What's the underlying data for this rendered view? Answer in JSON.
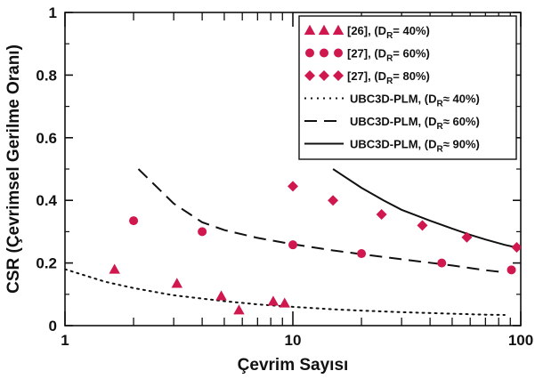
{
  "chart_data": {
    "type": "scatter",
    "xlabel": "Çevrim Sayısı",
    "ylabel": "CSR (Çevrimsel Gerilme Oranı)",
    "xscale": "log",
    "xlim": [
      1,
      100
    ],
    "ylim": [
      0,
      1
    ],
    "x_ticks": [
      1,
      10,
      100
    ],
    "x_tick_labels": [
      "1",
      "10",
      "100"
    ],
    "y_ticks": [
      0,
      0.2,
      0.4,
      0.6,
      0.8,
      1
    ],
    "y_tick_labels": [
      "0",
      "0.2",
      "0.4",
      "0.6",
      "0.8",
      "1"
    ],
    "grid": false,
    "legend_position": "top-right",
    "series": [
      {
        "name": "[26], (DR= 40%)",
        "legend_main": "[26], (D",
        "legend_sub": "R",
        "legend_rest": "= 40%)",
        "kind": "marker",
        "marker": "triangle",
        "color": "#D0184F",
        "x": [
          1.65,
          3.1,
          4.85,
          5.8,
          8.2,
          9.2
        ],
        "y": [
          0.18,
          0.135,
          0.095,
          0.05,
          0.078,
          0.072
        ]
      },
      {
        "name": "[27], (DR= 60%)",
        "legend_main": "[27], (D",
        "legend_sub": "R",
        "legend_rest": "= 60%)",
        "kind": "marker",
        "marker": "circle",
        "color": "#D0184F",
        "x": [
          2,
          4,
          10,
          20,
          45,
          91
        ],
        "y": [
          0.335,
          0.3,
          0.258,
          0.23,
          0.2,
          0.178
        ]
      },
      {
        "name": "[27], (DR= 80%)",
        "legend_main": "[27], (D",
        "legend_sub": "R",
        "legend_rest": "= 80%)",
        "kind": "marker",
        "marker": "diamond",
        "color": "#D0184F",
        "x": [
          10,
          15,
          24.5,
          37,
          58,
          96
        ],
        "y": [
          0.445,
          0.4,
          0.355,
          0.32,
          0.282,
          0.25
        ]
      },
      {
        "name": "UBC3D-PLM, (DR≈ 40%)",
        "legend_main": "UBC3D-PLM, (D",
        "legend_sub": "R",
        "legend_rest": "≈ 40%)",
        "kind": "line",
        "dash": "dotted",
        "color": "#111111",
        "x": [
          1,
          1.5,
          2,
          3,
          5,
          7,
          10,
          15,
          20,
          30,
          50,
          70,
          85
        ],
        "y": [
          0.18,
          0.14,
          0.12,
          0.097,
          0.078,
          0.068,
          0.06,
          0.052,
          0.048,
          0.043,
          0.038,
          0.035,
          0.034
        ]
      },
      {
        "name": "UBC3D-PLM, (DR≈ 60%)",
        "legend_main": "UBC3D-PLM, (D",
        "legend_sub": "R",
        "legend_rest": "≈ 60%)",
        "kind": "line",
        "dash": "dashed",
        "color": "#111111",
        "x": [
          2.1,
          3,
          4,
          5,
          7,
          10,
          15,
          20,
          30,
          50,
          70,
          85
        ],
        "y": [
          0.5,
          0.39,
          0.33,
          0.305,
          0.28,
          0.26,
          0.24,
          0.228,
          0.212,
          0.192,
          0.177,
          0.17
        ]
      },
      {
        "name": "UBC3D-PLM, (DR≈ 90%)",
        "legend_main": "UBC3D-PLM, (D",
        "legend_sub": "R",
        "legend_rest": "≈ 90%)",
        "kind": "line",
        "dash": "solid",
        "color": "#111111",
        "x": [
          15,
          20,
          25,
          30,
          40,
          50,
          60,
          70,
          85,
          95
        ],
        "y": [
          0.5,
          0.44,
          0.4,
          0.37,
          0.335,
          0.31,
          0.29,
          0.275,
          0.258,
          0.25
        ]
      }
    ]
  }
}
